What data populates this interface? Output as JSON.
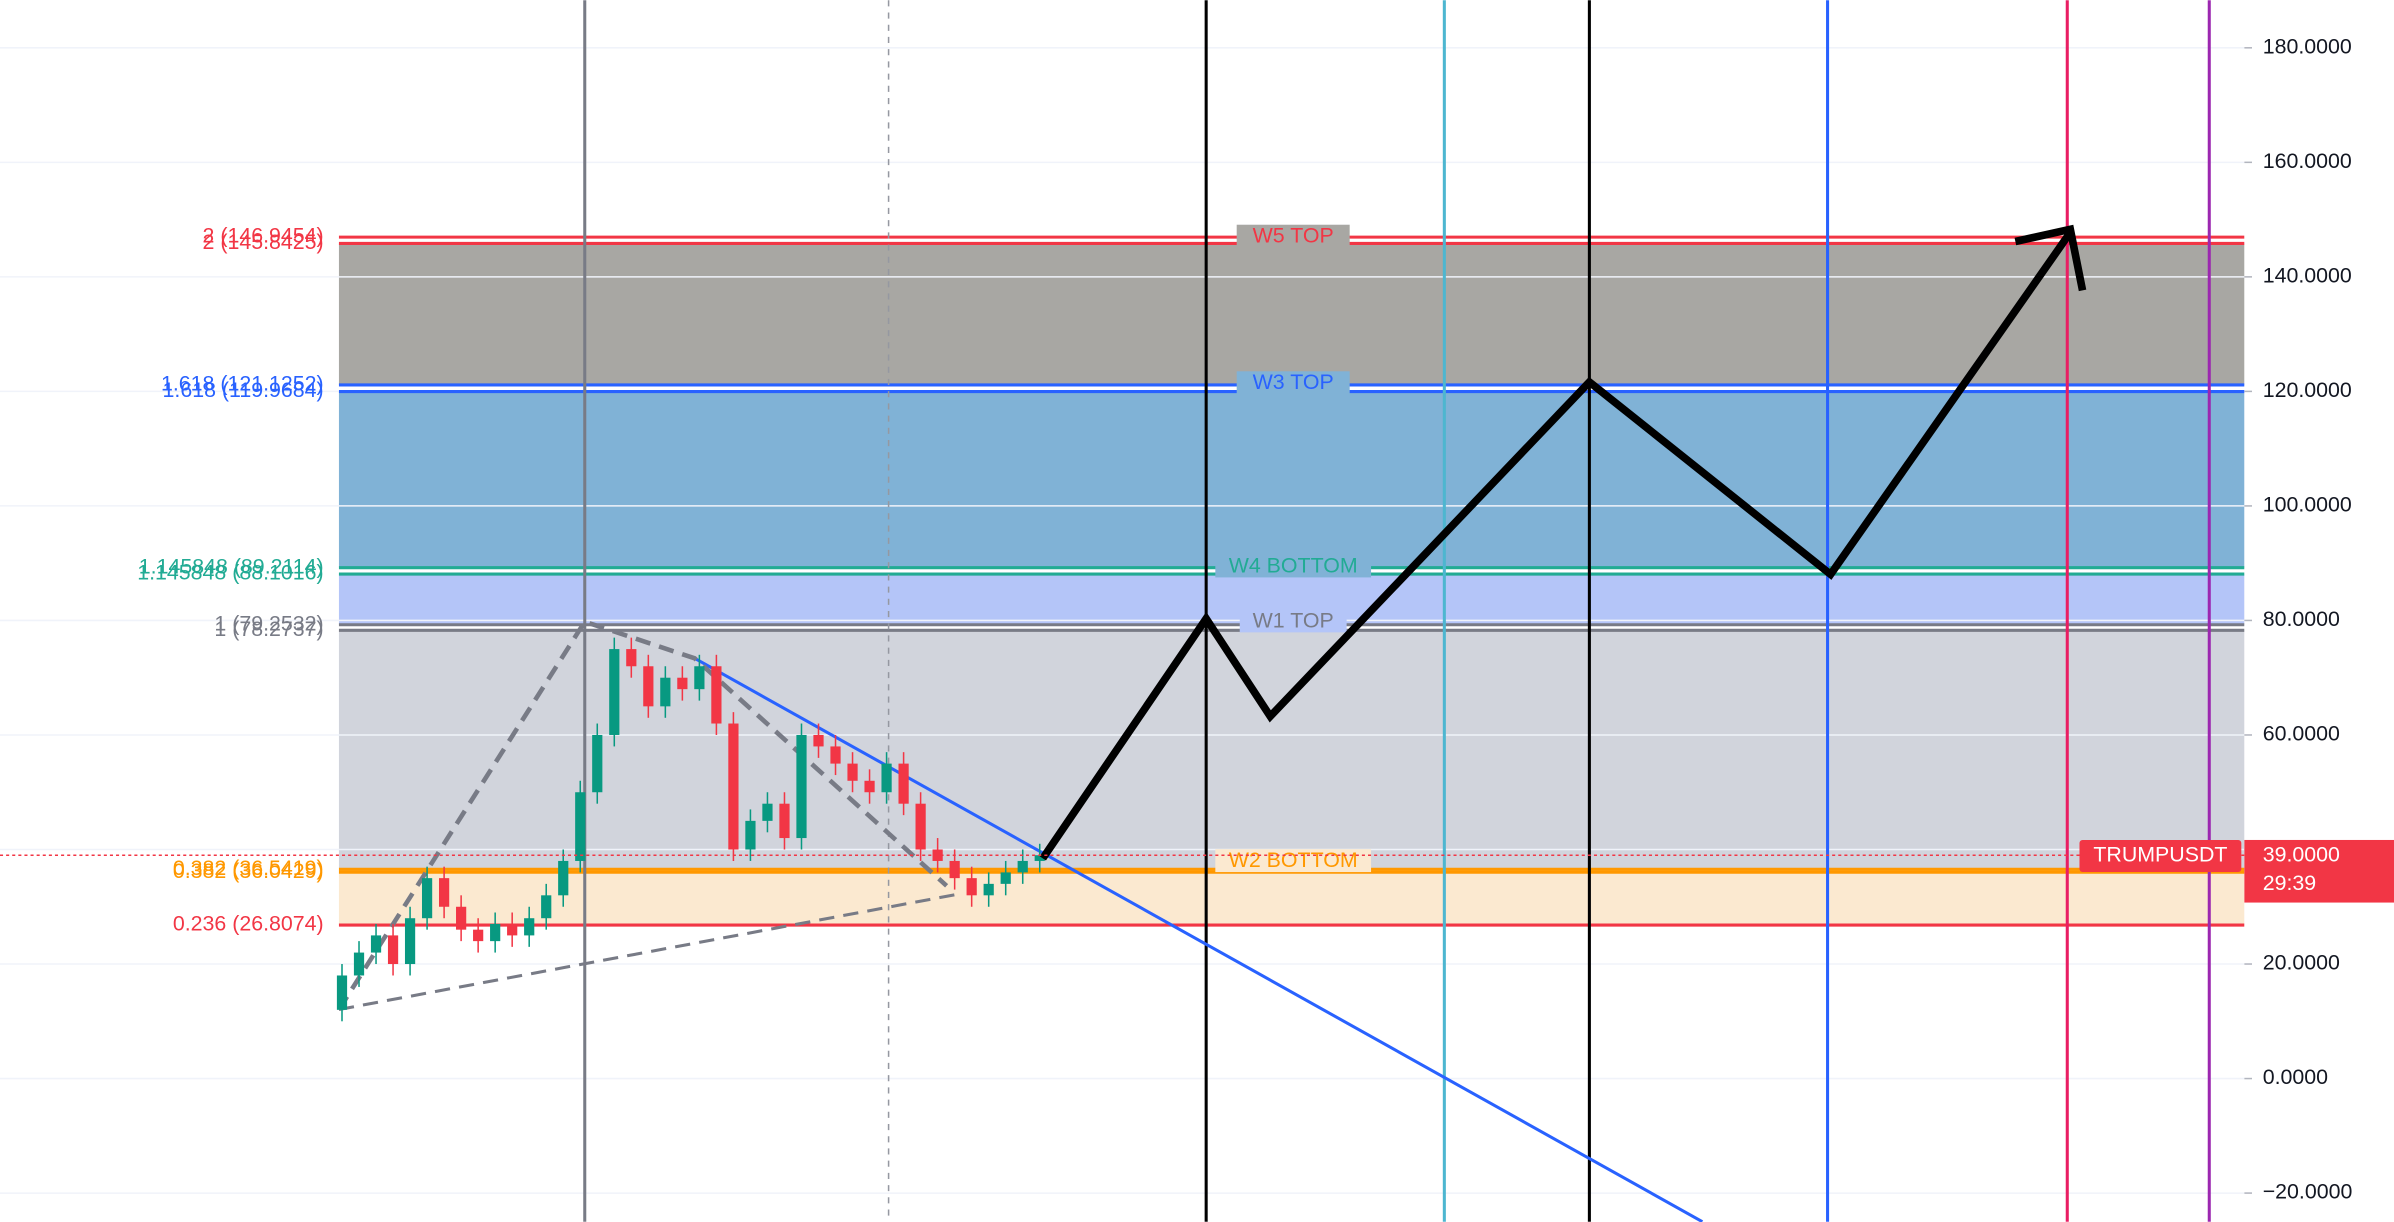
{
  "chart_data": {
    "type": "candlestick",
    "ylim": [
      -25,
      188.3
    ],
    "yticks": [
      {
        "value": 180,
        "label": "180.0000"
      },
      {
        "value": 160,
        "label": "160.0000"
      },
      {
        "value": 140,
        "label": "140.0000"
      },
      {
        "value": 120,
        "label": "120.0000"
      },
      {
        "value": 100,
        "label": "100.0000"
      },
      {
        "value": 80,
        "label": "80.0000"
      },
      {
        "value": 60,
        "label": "60.0000"
      },
      {
        "value": 40,
        "label": "40.0000"
      },
      {
        "value": 20,
        "label": "20.0000"
      },
      {
        "value": 0,
        "label": "0.0000"
      },
      {
        "value": -20,
        "label": "−20.0000"
      }
    ],
    "grid": true,
    "up_color": "#089981",
    "down_color": "#f23645",
    "open": [
      12,
      18,
      22,
      25,
      20,
      28,
      35,
      30,
      26,
      24,
      27,
      25,
      28,
      32,
      38,
      50,
      60,
      75,
      72,
      65,
      70,
      68,
      72,
      62,
      40,
      45,
      48,
      42,
      60,
      58,
      55,
      52,
      50,
      55,
      48,
      40,
      38,
      35,
      32,
      34,
      36,
      38
    ],
    "high": [
      20,
      24,
      27,
      27,
      30,
      37,
      37,
      32,
      28,
      29,
      29,
      30,
      34,
      40,
      52,
      62,
      77,
      77,
      74,
      72,
      72,
      74,
      74,
      64,
      47,
      50,
      50,
      62,
      62,
      60,
      57,
      54,
      57,
      57,
      50,
      42,
      40,
      37,
      36,
      38,
      40,
      41
    ],
    "low": [
      10,
      16,
      20,
      18,
      18,
      26,
      28,
      24,
      22,
      22,
      23,
      23,
      26,
      30,
      36,
      48,
      58,
      70,
      63,
      63,
      66,
      66,
      60,
      38,
      38,
      43,
      40,
      40,
      56,
      53,
      50,
      48,
      48,
      46,
      38,
      36,
      33,
      30,
      30,
      32,
      34,
      36
    ],
    "close": [
      18,
      22,
      25,
      20,
      28,
      35,
      30,
      26,
      24,
      27,
      25,
      28,
      32,
      38,
      50,
      60,
      75,
      72,
      65,
      70,
      68,
      72,
      62,
      40,
      45,
      48,
      42,
      60,
      58,
      55,
      52,
      50,
      55,
      48,
      40,
      38,
      35,
      32,
      34,
      36,
      38,
      39
    ],
    "fib_levels": [
      {
        "label": "2 (146.9454)",
        "value": 146.9454,
        "color": "#f23645"
      },
      {
        "label": "2 (145.8425)",
        "value": 145.8425,
        "color": "#f23645",
        "zone_color": "#a8a7a3"
      },
      {
        "label": "1.618 (121.1252)",
        "value": 121.1252,
        "color": "#2962ff"
      },
      {
        "label": "1.618 (119.9684)",
        "value": 119.9684,
        "color": "#2962ff",
        "zone_color": "#80b2d6"
      },
      {
        "label": "1.145848 (89.2114)",
        "value": 89.2114,
        "color": "#22ab94"
      },
      {
        "label": "1.145848 (88.1016)",
        "value": 88.1016,
        "color": "#22ab94",
        "zone_color": "#b4c5f8"
      },
      {
        "label": "1 (79.2532)",
        "value": 79.2532,
        "color": "#787b86"
      },
      {
        "label": "1 (78.2737)",
        "value": 78.2737,
        "color": "#787b86",
        "zone_color": "#d1d4dc"
      },
      {
        "label": "0.382 (36.5419)",
        "value": 36.5419,
        "color": "#ff9800"
      },
      {
        "label": "0.382 (36.0429)",
        "value": 36.0429,
        "color": "#ff9800",
        "zone_color": "#fbe9d0"
      },
      {
        "label": "0.236 (26.8074)",
        "value": 26.8074,
        "color": "#f23645"
      }
    ],
    "wave_labels": [
      "W5 TOP",
      "W3 TOP",
      "W4 BOTTOM",
      "W1 TOP",
      "W2 BOTTOM"
    ],
    "symbol": "TRUMPUSDT",
    "last_price": 39,
    "last_price_label": "39.0000",
    "countdown": "29:39"
  }
}
